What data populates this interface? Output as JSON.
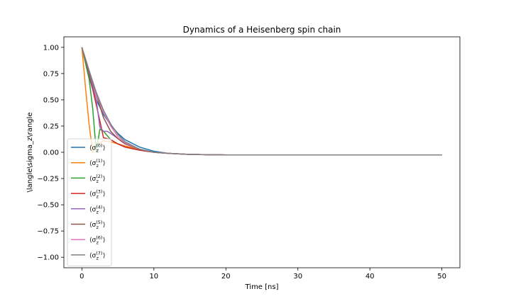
{
  "chart_data": {
    "type": "line",
    "title": "Dynamics of a Heisenberg spin chain",
    "xlabel": "Time [ns]",
    "ylabel": "\\langle\\sigma_z\\rangle",
    "xlim": [
      -2.5,
      52.5
    ],
    "ylim": [
      -1.1,
      1.1
    ],
    "xticks": [
      0,
      10,
      20,
      30,
      40,
      50
    ],
    "xtick_labels": [
      "0",
      "10",
      "20",
      "30",
      "40",
      "50"
    ],
    "yticks": [
      -1.0,
      -0.75,
      -0.5,
      -0.25,
      0.0,
      0.25,
      0.5,
      0.75,
      1.0
    ],
    "ytick_labels": [
      "−1.00",
      "−0.75",
      "−0.50",
      "−0.25",
      "0.00",
      "0.25",
      "0.50",
      "0.75",
      "1.00"
    ],
    "grid": false,
    "legend_position": "lower-left",
    "series": [
      {
        "name": "⟨σ_z^{(0)}⟩",
        "color": "#1f77b4",
        "x": [
          0,
          0.5,
          1,
          1.5,
          2,
          3,
          4,
          5,
          6,
          8,
          10,
          12,
          15,
          20,
          30,
          40,
          50
        ],
        "y": [
          1.0,
          0.86,
          0.72,
          0.6,
          0.5,
          0.36,
          0.26,
          0.18,
          0.12,
          0.05,
          0.01,
          -0.01,
          -0.02,
          -0.025,
          -0.025,
          -0.025,
          -0.025
        ]
      },
      {
        "name": "⟨σ_z^{(1)}⟩",
        "color": "#ff7f0e",
        "x": [
          0,
          0.5,
          1,
          1.5,
          2,
          3,
          4,
          5,
          6,
          8,
          10,
          12,
          15,
          20,
          30,
          40,
          50
        ],
        "y": [
          1.0,
          0.62,
          0.27,
          0.0,
          0.07,
          0.11,
          0.1,
          0.08,
          0.06,
          0.03,
          0.0,
          -0.01,
          -0.02,
          -0.025,
          -0.025,
          -0.025,
          -0.025
        ]
      },
      {
        "name": "⟨σ_z^{(2)}⟩",
        "color": "#2ca02c",
        "x": [
          0,
          1,
          1.5,
          2,
          2.5,
          3,
          3.5,
          4,
          5,
          6,
          8,
          10,
          12,
          15,
          20,
          30,
          40,
          50
        ],
        "y": [
          1.0,
          0.7,
          0.42,
          0.0,
          0.22,
          0.2,
          0.16,
          0.12,
          0.08,
          0.05,
          0.02,
          0.0,
          -0.01,
          -0.02,
          -0.025,
          -0.025,
          -0.025,
          -0.025
        ]
      },
      {
        "name": "⟨σ_z^{(3)}⟩",
        "color": "#d62728",
        "x": [
          0,
          1,
          2,
          2.5,
          3,
          3.5,
          4,
          5,
          6,
          8,
          10,
          12,
          15,
          20,
          30,
          40,
          50
        ],
        "y": [
          1.0,
          0.75,
          0.45,
          0.3,
          0.14,
          0.13,
          0.12,
          0.08,
          0.05,
          0.02,
          0.0,
          -0.01,
          -0.02,
          -0.025,
          -0.025,
          -0.025,
          -0.025
        ]
      },
      {
        "name": "⟨σ_z^{(4)}⟩",
        "color": "#9467bd",
        "x": [
          0,
          1,
          2,
          2.5,
          3,
          3.5,
          4,
          5,
          6,
          8,
          10,
          12,
          15,
          20,
          30,
          40,
          50
        ],
        "y": [
          1.0,
          0.76,
          0.5,
          0.24,
          0.2,
          0.2,
          0.18,
          0.13,
          0.08,
          0.03,
          0.0,
          -0.01,
          -0.02,
          -0.025,
          -0.025,
          -0.025,
          -0.025
        ]
      },
      {
        "name": "⟨σ_z^{(5)}⟩",
        "color": "#8c564b",
        "x": [
          0,
          1,
          2,
          3,
          4,
          5,
          6,
          8,
          10,
          12,
          15,
          20,
          30,
          40,
          50
        ],
        "y": [
          1.0,
          0.77,
          0.55,
          0.33,
          0.2,
          0.13,
          0.08,
          0.03,
          0.0,
          -0.01,
          -0.02,
          -0.025,
          -0.025,
          -0.025,
          -0.025
        ]
      },
      {
        "name": "⟨σ_z^{(6)}⟩",
        "color": "#e377c2",
        "x": [
          0,
          1,
          2,
          3,
          4,
          5,
          6,
          8,
          10,
          12,
          15,
          20,
          30,
          40,
          50
        ],
        "y": [
          1.0,
          0.78,
          0.56,
          0.38,
          0.25,
          0.15,
          0.09,
          0.03,
          0.0,
          -0.01,
          -0.02,
          -0.025,
          -0.025,
          -0.025,
          -0.025
        ]
      },
      {
        "name": "⟨σ_z^{(7)}⟩",
        "color": "#7f7f7f",
        "x": [
          0,
          1,
          2,
          3,
          4,
          5,
          6,
          8,
          10,
          12,
          15,
          20,
          30,
          40,
          50
        ],
        "y": [
          1.0,
          0.78,
          0.57,
          0.4,
          0.27,
          0.17,
          0.1,
          0.03,
          0.0,
          -0.01,
          -0.02,
          -0.025,
          -0.025,
          -0.025,
          -0.025
        ]
      }
    ]
  }
}
